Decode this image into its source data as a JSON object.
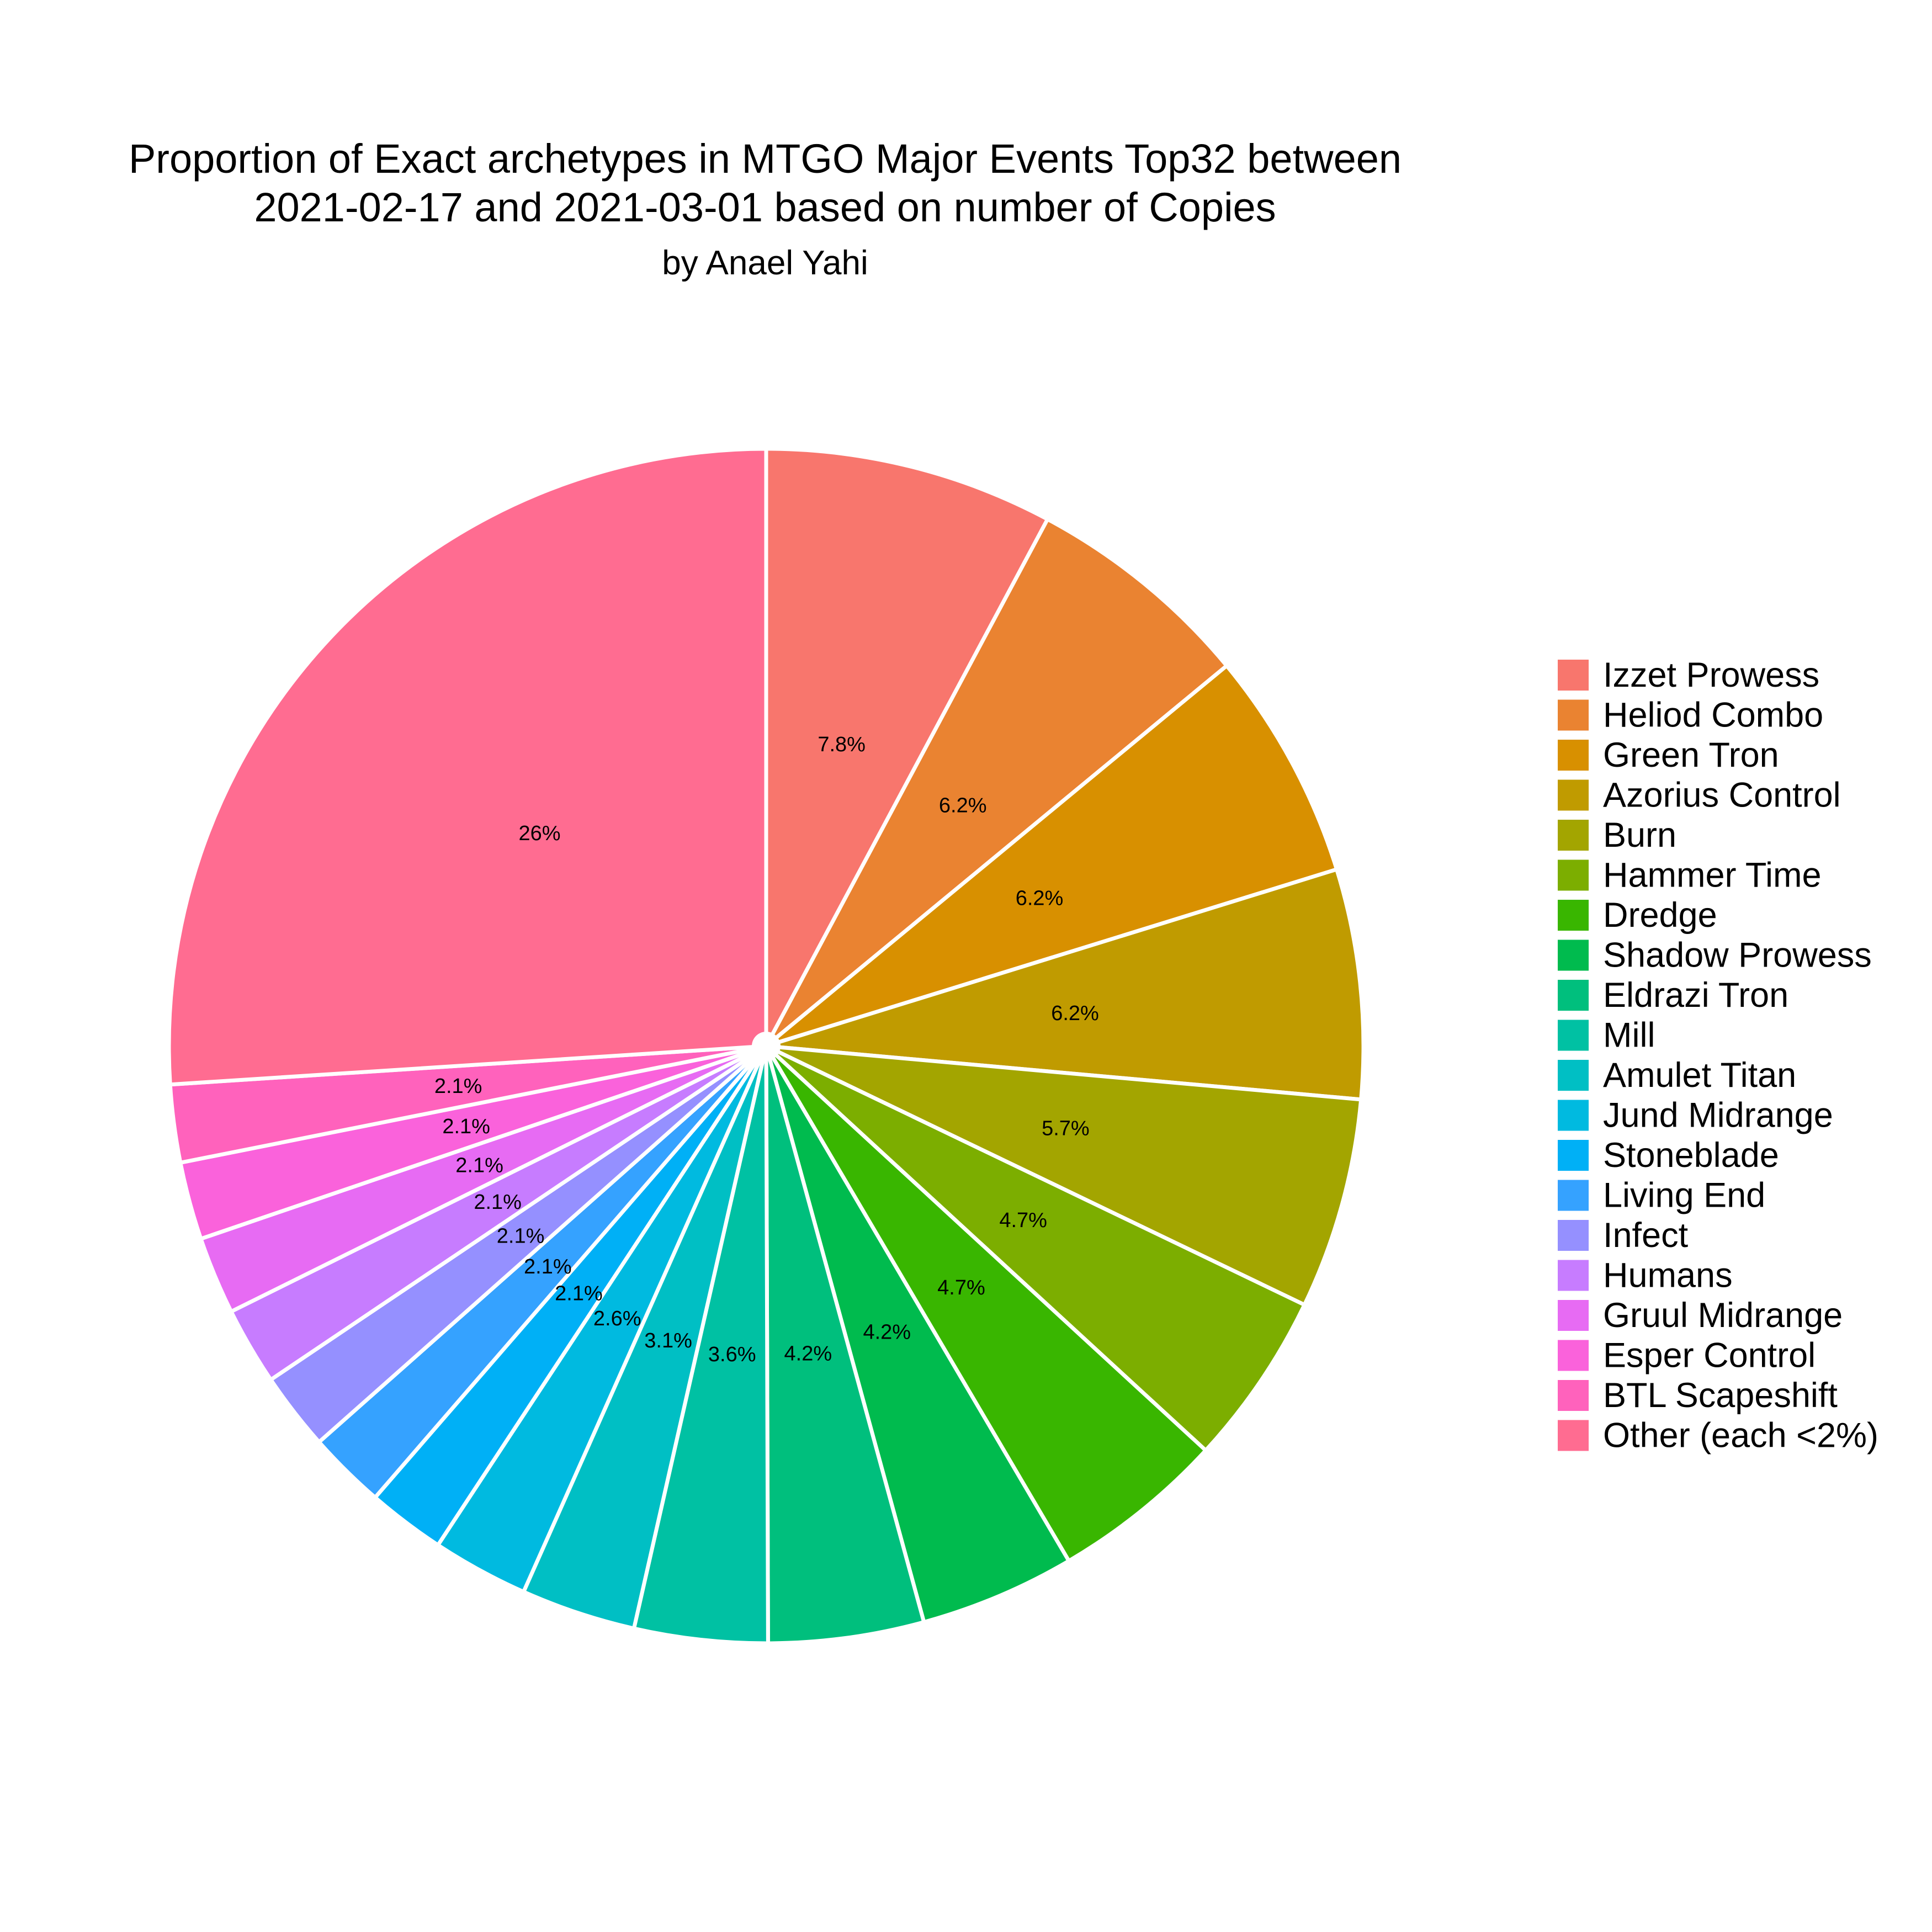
{
  "chart_data": {
    "type": "pie",
    "title_line1": "Proportion of Exact archetypes in MTGO Major Events Top32 between",
    "title_line2": "2021-02-17 and 2021-03-01 based on number of Copies",
    "subtitle": "by Anael Yahi",
    "legend_position": "right",
    "direction": "clockwise from top",
    "slices": [
      {
        "name": "Izzet Prowess",
        "value": 7.8,
        "label": "7.8%",
        "color": "#F8766D"
      },
      {
        "name": "Heliod Combo",
        "value": 6.2,
        "label": "6.2%",
        "color": "#EA8331"
      },
      {
        "name": "Green Tron",
        "value": 6.2,
        "label": "6.2%",
        "color": "#D89000"
      },
      {
        "name": "Azorius Control",
        "value": 6.2,
        "label": "6.2%",
        "color": "#C09B00"
      },
      {
        "name": "Burn",
        "value": 5.7,
        "label": "5.7%",
        "color": "#A3A500"
      },
      {
        "name": "Hammer Time",
        "value": 4.7,
        "label": "4.7%",
        "color": "#7CAE00"
      },
      {
        "name": "Dredge",
        "value": 4.7,
        "label": "4.7%",
        "color": "#39B600"
      },
      {
        "name": "Shadow Prowess",
        "value": 4.2,
        "label": "4.2%",
        "color": "#00BB4E"
      },
      {
        "name": "Eldrazi Tron",
        "value": 4.2,
        "label": "4.2%",
        "color": "#00BF7D"
      },
      {
        "name": "Mill",
        "value": 3.6,
        "label": "3.6%",
        "color": "#00C1A3"
      },
      {
        "name": "Amulet Titan",
        "value": 3.1,
        "label": "3.1%",
        "color": "#00BFC4"
      },
      {
        "name": "Jund Midrange",
        "value": 2.6,
        "label": "2.6%",
        "color": "#00BAE0"
      },
      {
        "name": "Stoneblade",
        "value": 2.1,
        "label": "2.1%",
        "color": "#00B0F6"
      },
      {
        "name": "Living End",
        "value": 2.1,
        "label": "2.1%",
        "color": "#35A2FF"
      },
      {
        "name": "Infect",
        "value": 2.1,
        "label": "2.1%",
        "color": "#9590FF"
      },
      {
        "name": "Humans",
        "value": 2.1,
        "label": "2.1%",
        "color": "#C77CFF"
      },
      {
        "name": "Gruul Midrange",
        "value": 2.1,
        "label": "2.1%",
        "color": "#E76BF3"
      },
      {
        "name": "Esper Control",
        "value": 2.1,
        "label": "2.1%",
        "color": "#FA62DB"
      },
      {
        "name": "BTL Scapeshift",
        "value": 2.1,
        "label": "2.1%",
        "color": "#FF62BC"
      },
      {
        "name": "Other (each <2%)",
        "value": 26,
        "label": "26%",
        "color": "#FF6C91"
      }
    ]
  }
}
